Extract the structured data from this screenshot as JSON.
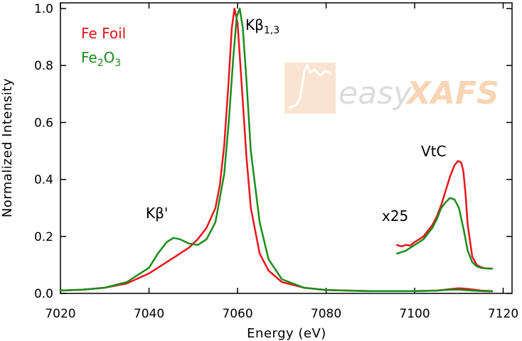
{
  "chart_data": {
    "type": "line",
    "xlabel": "Energy (eV)",
    "ylabel": "Normalized Intensity",
    "xlim": [
      7020,
      7122
    ],
    "ylim": [
      0.0,
      1.02
    ],
    "x_ticks": [
      7020,
      7040,
      7060,
      7080,
      7100,
      7120
    ],
    "x_tick_labels": [
      "7020",
      "7040",
      "7060",
      "7080",
      "7100",
      "7120"
    ],
    "y_ticks": [
      0.0,
      0.2,
      0.4,
      0.6,
      0.8,
      1.0
    ],
    "y_tick_labels": [
      "0.0",
      "0.2",
      "0.4",
      "0.6",
      "0.8",
      "1.0"
    ],
    "grid": false,
    "legend_position": "top-left",
    "series": [
      {
        "name": "Fe Foil",
        "color": "#e8141c",
        "x": [
          7020,
          7025,
          7030,
          7035,
          7040,
          7043,
          7046,
          7049,
          7051,
          7053,
          7055,
          7056,
          7057,
          7058,
          7058.7,
          7059.3,
          7060,
          7061,
          7062,
          7063,
          7065,
          7067,
          7070,
          7075,
          7080,
          7090,
          7100,
          7105,
          7108,
          7110,
          7112,
          7115,
          7117.5
        ],
        "y": [
          0.01,
          0.013,
          0.02,
          0.035,
          0.07,
          0.1,
          0.13,
          0.16,
          0.19,
          0.23,
          0.3,
          0.38,
          0.52,
          0.75,
          0.93,
          1.0,
          0.95,
          0.72,
          0.48,
          0.3,
          0.14,
          0.08,
          0.04,
          0.02,
          0.012,
          0.008,
          0.008,
          0.01,
          0.015,
          0.018,
          0.016,
          0.01,
          0.008
        ]
      },
      {
        "name": "Fe2O3",
        "color": "#1a8c1a",
        "x": [
          7020,
          7025,
          7030,
          7035,
          7040,
          7042,
          7044,
          7045.5,
          7047,
          7049,
          7051,
          7053,
          7055,
          7057,
          7058,
          7059,
          7059.8,
          7060.5,
          7061.2,
          7062,
          7063,
          7065,
          7067,
          7070,
          7075,
          7080,
          7090,
          7100,
          7105,
          7108,
          7110,
          7112,
          7115,
          7117.5
        ],
        "y": [
          0.01,
          0.013,
          0.02,
          0.04,
          0.09,
          0.14,
          0.18,
          0.195,
          0.19,
          0.175,
          0.17,
          0.19,
          0.25,
          0.42,
          0.6,
          0.82,
          0.97,
          1.0,
          0.93,
          0.75,
          0.5,
          0.25,
          0.12,
          0.05,
          0.02,
          0.012,
          0.008,
          0.008,
          0.01,
          0.013,
          0.013,
          0.011,
          0.008,
          0.007
        ]
      },
      {
        "name": "Fe Foil VtC x25",
        "color": "#e8141c",
        "x": [
          7096,
          7097,
          7098,
          7099,
          7100,
          7101,
          7102,
          7103,
          7104,
          7105,
          7106,
          7107,
          7108,
          7109,
          7109.8,
          7110.5,
          7111,
          7111.5,
          7112,
          7113,
          7114,
          7115,
          7116,
          7117.5
        ],
        "y": [
          0.17,
          0.165,
          0.17,
          0.168,
          0.18,
          0.19,
          0.2,
          0.22,
          0.24,
          0.27,
          0.31,
          0.36,
          0.41,
          0.45,
          0.465,
          0.46,
          0.43,
          0.35,
          0.24,
          0.13,
          0.1,
          0.092,
          0.088,
          0.087
        ]
      },
      {
        "name": "Fe2O3 VtC x25",
        "color": "#1a8c1a",
        "x": [
          7096,
          7097,
          7098,
          7099,
          7100,
          7101,
          7102,
          7103,
          7104,
          7105,
          7106,
          7107,
          7108,
          7109,
          7110,
          7111,
          7112,
          7113,
          7114,
          7115,
          7116,
          7117.5
        ],
        "y": [
          0.14,
          0.145,
          0.15,
          0.16,
          0.17,
          0.18,
          0.19,
          0.21,
          0.23,
          0.26,
          0.3,
          0.32,
          0.335,
          0.33,
          0.3,
          0.23,
          0.15,
          0.11,
          0.095,
          0.09,
          0.088,
          0.087
        ]
      }
    ],
    "legend": [
      {
        "main": "Fe Foil",
        "color": "#e8141c"
      },
      {
        "main": "Fe",
        "sub1": "2",
        "mid": "O",
        "sub2": "3",
        "color": "#1a8c1a"
      }
    ],
    "annotations": {
      "kb13": {
        "main": "Kβ",
        "sub": "1,3"
      },
      "kbprime": "Kβ'",
      "vtc": "VtC",
      "x25": "x25"
    },
    "watermark": {
      "plain": "easy",
      "bold": "XAFS"
    }
  }
}
